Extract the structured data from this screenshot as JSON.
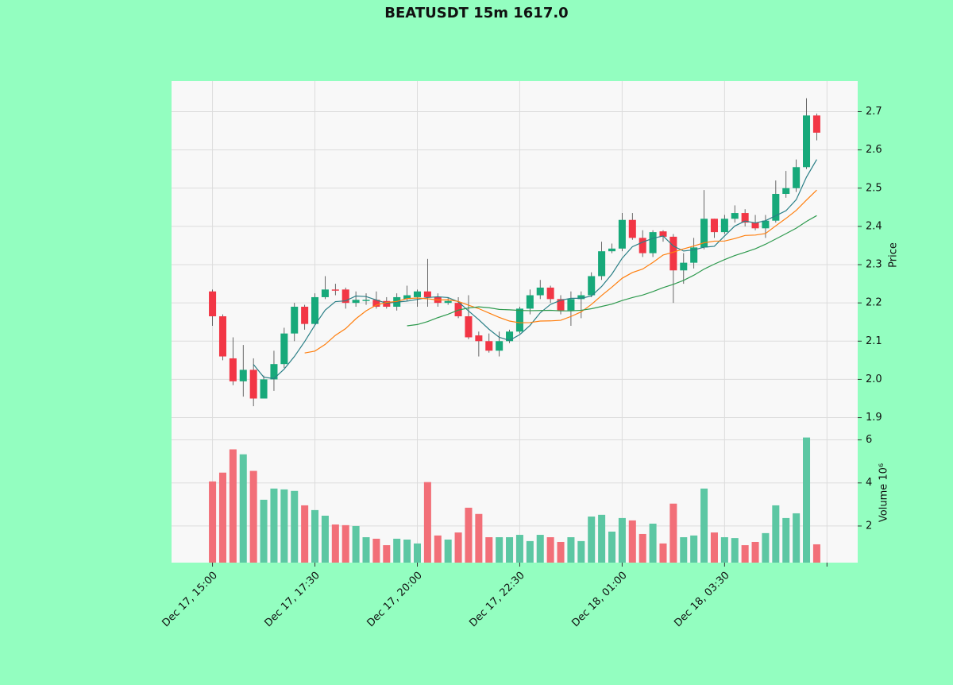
{
  "chart_data": {
    "type": "candlestick",
    "title": "BEATUSDT 15m 1617.0",
    "x": [
      0,
      1,
      2,
      3,
      4,
      5,
      6,
      7,
      8,
      9,
      10,
      11,
      12,
      13,
      14,
      15,
      16,
      17,
      18,
      19,
      20,
      21,
      22,
      23,
      24,
      25,
      26,
      27,
      28,
      29,
      30,
      31,
      32,
      33,
      34,
      35,
      36,
      37,
      38,
      39,
      40,
      41,
      42,
      43,
      44,
      45,
      46,
      47,
      48,
      49,
      50,
      51,
      52,
      53,
      54,
      55,
      56,
      57,
      58,
      59
    ],
    "open": [
      2.23,
      2.165,
      2.055,
      1.995,
      2.025,
      1.95,
      2.0,
      2.04,
      2.12,
      2.19,
      2.145,
      2.215,
      2.235,
      2.235,
      2.2,
      2.205,
      2.208,
      2.205,
      2.19,
      2.21,
      2.215,
      2.23,
      2.215,
      2.2,
      2.2,
      2.165,
      2.115,
      2.1,
      2.075,
      2.1,
      2.125,
      2.185,
      2.22,
      2.24,
      2.21,
      2.18,
      2.21,
      2.22,
      2.27,
      2.335,
      2.342,
      2.417,
      2.37,
      2.33,
      2.387,
      2.373,
      2.285,
      2.305,
      2.345,
      2.42,
      2.385,
      2.42,
      2.435,
      2.41,
      2.395,
      2.415,
      2.485,
      2.5,
      2.555,
      2.69
    ],
    "high": [
      2.235,
      2.17,
      2.11,
      2.09,
      2.055,
      2.01,
      2.075,
      2.135,
      2.2,
      2.195,
      2.225,
      2.27,
      2.25,
      2.24,
      2.23,
      2.225,
      2.23,
      2.215,
      2.225,
      2.245,
      2.235,
      2.315,
      2.225,
      2.215,
      2.215,
      2.22,
      2.125,
      2.12,
      2.125,
      2.13,
      2.19,
      2.235,
      2.26,
      2.245,
      2.22,
      2.23,
      2.23,
      2.28,
      2.36,
      2.355,
      2.435,
      2.435,
      2.39,
      2.39,
      2.39,
      2.38,
      2.33,
      2.37,
      2.495,
      2.42,
      2.43,
      2.455,
      2.445,
      2.43,
      2.43,
      2.52,
      2.545,
      2.575,
      2.735,
      2.695
    ],
    "low": [
      2.14,
      2.05,
      1.985,
      1.955,
      1.93,
      1.95,
      1.97,
      2.03,
      2.1,
      2.13,
      2.14,
      2.21,
      2.22,
      2.185,
      2.19,
      2.195,
      2.185,
      2.185,
      2.18,
      2.205,
      2.19,
      2.19,
      2.19,
      2.195,
      2.16,
      2.105,
      2.06,
      2.07,
      2.06,
      2.095,
      2.12,
      2.17,
      2.21,
      2.2,
      2.17,
      2.14,
      2.16,
      2.215,
      2.26,
      2.33,
      2.335,
      2.365,
      2.32,
      2.32,
      2.36,
      2.2,
      2.25,
      2.29,
      2.34,
      2.37,
      2.38,
      2.41,
      2.4,
      2.39,
      2.37,
      2.41,
      2.475,
      2.49,
      2.55,
      2.625
    ],
    "close": [
      2.165,
      2.06,
      1.995,
      2.025,
      1.95,
      2.0,
      2.04,
      2.12,
      2.19,
      2.145,
      2.215,
      2.235,
      2.232,
      2.2,
      2.208,
      2.208,
      2.19,
      2.19,
      2.215,
      2.22,
      2.23,
      2.215,
      2.2,
      2.205,
      2.165,
      2.11,
      2.1,
      2.075,
      2.1,
      2.125,
      2.185,
      2.22,
      2.24,
      2.21,
      2.18,
      2.21,
      2.22,
      2.27,
      2.335,
      2.342,
      2.417,
      2.37,
      2.33,
      2.385,
      2.373,
      2.285,
      2.305,
      2.345,
      2.42,
      2.385,
      2.42,
      2.435,
      2.41,
      2.395,
      2.415,
      2.485,
      2.5,
      2.555,
      2.69,
      2.645
    ],
    "volume": [
      4.07,
      4.48,
      5.56,
      5.33,
      4.56,
      3.22,
      3.74,
      3.7,
      3.63,
      2.96,
      2.74,
      2.48,
      2.07,
      2.04,
      2.0,
      1.48,
      1.41,
      1.11,
      1.41,
      1.37,
      1.19,
      4.04,
      1.56,
      1.37,
      1.7,
      2.85,
      2.56,
      1.48,
      1.48,
      1.48,
      1.59,
      1.3,
      1.59,
      1.48,
      1.26,
      1.48,
      1.3,
      2.44,
      2.52,
      1.74,
      2.37,
      2.26,
      1.63,
      2.11,
      1.19,
      3.04,
      1.48,
      1.56,
      3.74,
      1.7,
      1.48,
      1.44,
      1.11,
      1.26,
      1.67,
      2.96,
      2.37,
      2.59,
      6.11,
      1.15
    ],
    "up_color": "#17a97a",
    "down_color": "#f23645",
    "volume_up_color": "#5cc7a3",
    "volume_down_color": "#f26f78",
    "moving_averages": [
      {
        "window": 5,
        "color": "#2a7f86"
      },
      {
        "window": 10,
        "color": "#ff7f0e"
      },
      {
        "window": 20,
        "color": "#2e9a4e"
      }
    ],
    "xlim": [
      -4,
      63
    ],
    "xticks": [
      {
        "value": 0,
        "label": "Dec 17, 15:00"
      },
      {
        "value": 10,
        "label": "Dec 17, 17:30"
      },
      {
        "value": 20,
        "label": "Dec 17, 20:00"
      },
      {
        "value": 30,
        "label": "Dec 17, 22:30"
      },
      {
        "value": 40,
        "label": "Dec 18, 01:00"
      },
      {
        "value": 50,
        "label": "Dec 18, 03:30"
      },
      {
        "value": 60,
        "label": null
      }
    ],
    "ylabel": "Price",
    "ylim": [
      1.87,
      2.78
    ],
    "yticks": [
      1.9,
      {
        "value": 2,
        "label": "2.0"
      },
      2.1,
      2.2,
      2.3,
      2.4,
      2.5,
      2.6,
      2.7
    ],
    "volume_label": "Volume  10⁶",
    "volume_ylim": [
      0.3,
      6.5
    ],
    "volume_yticks": [
      2,
      4,
      6
    ],
    "grid": true
  }
}
